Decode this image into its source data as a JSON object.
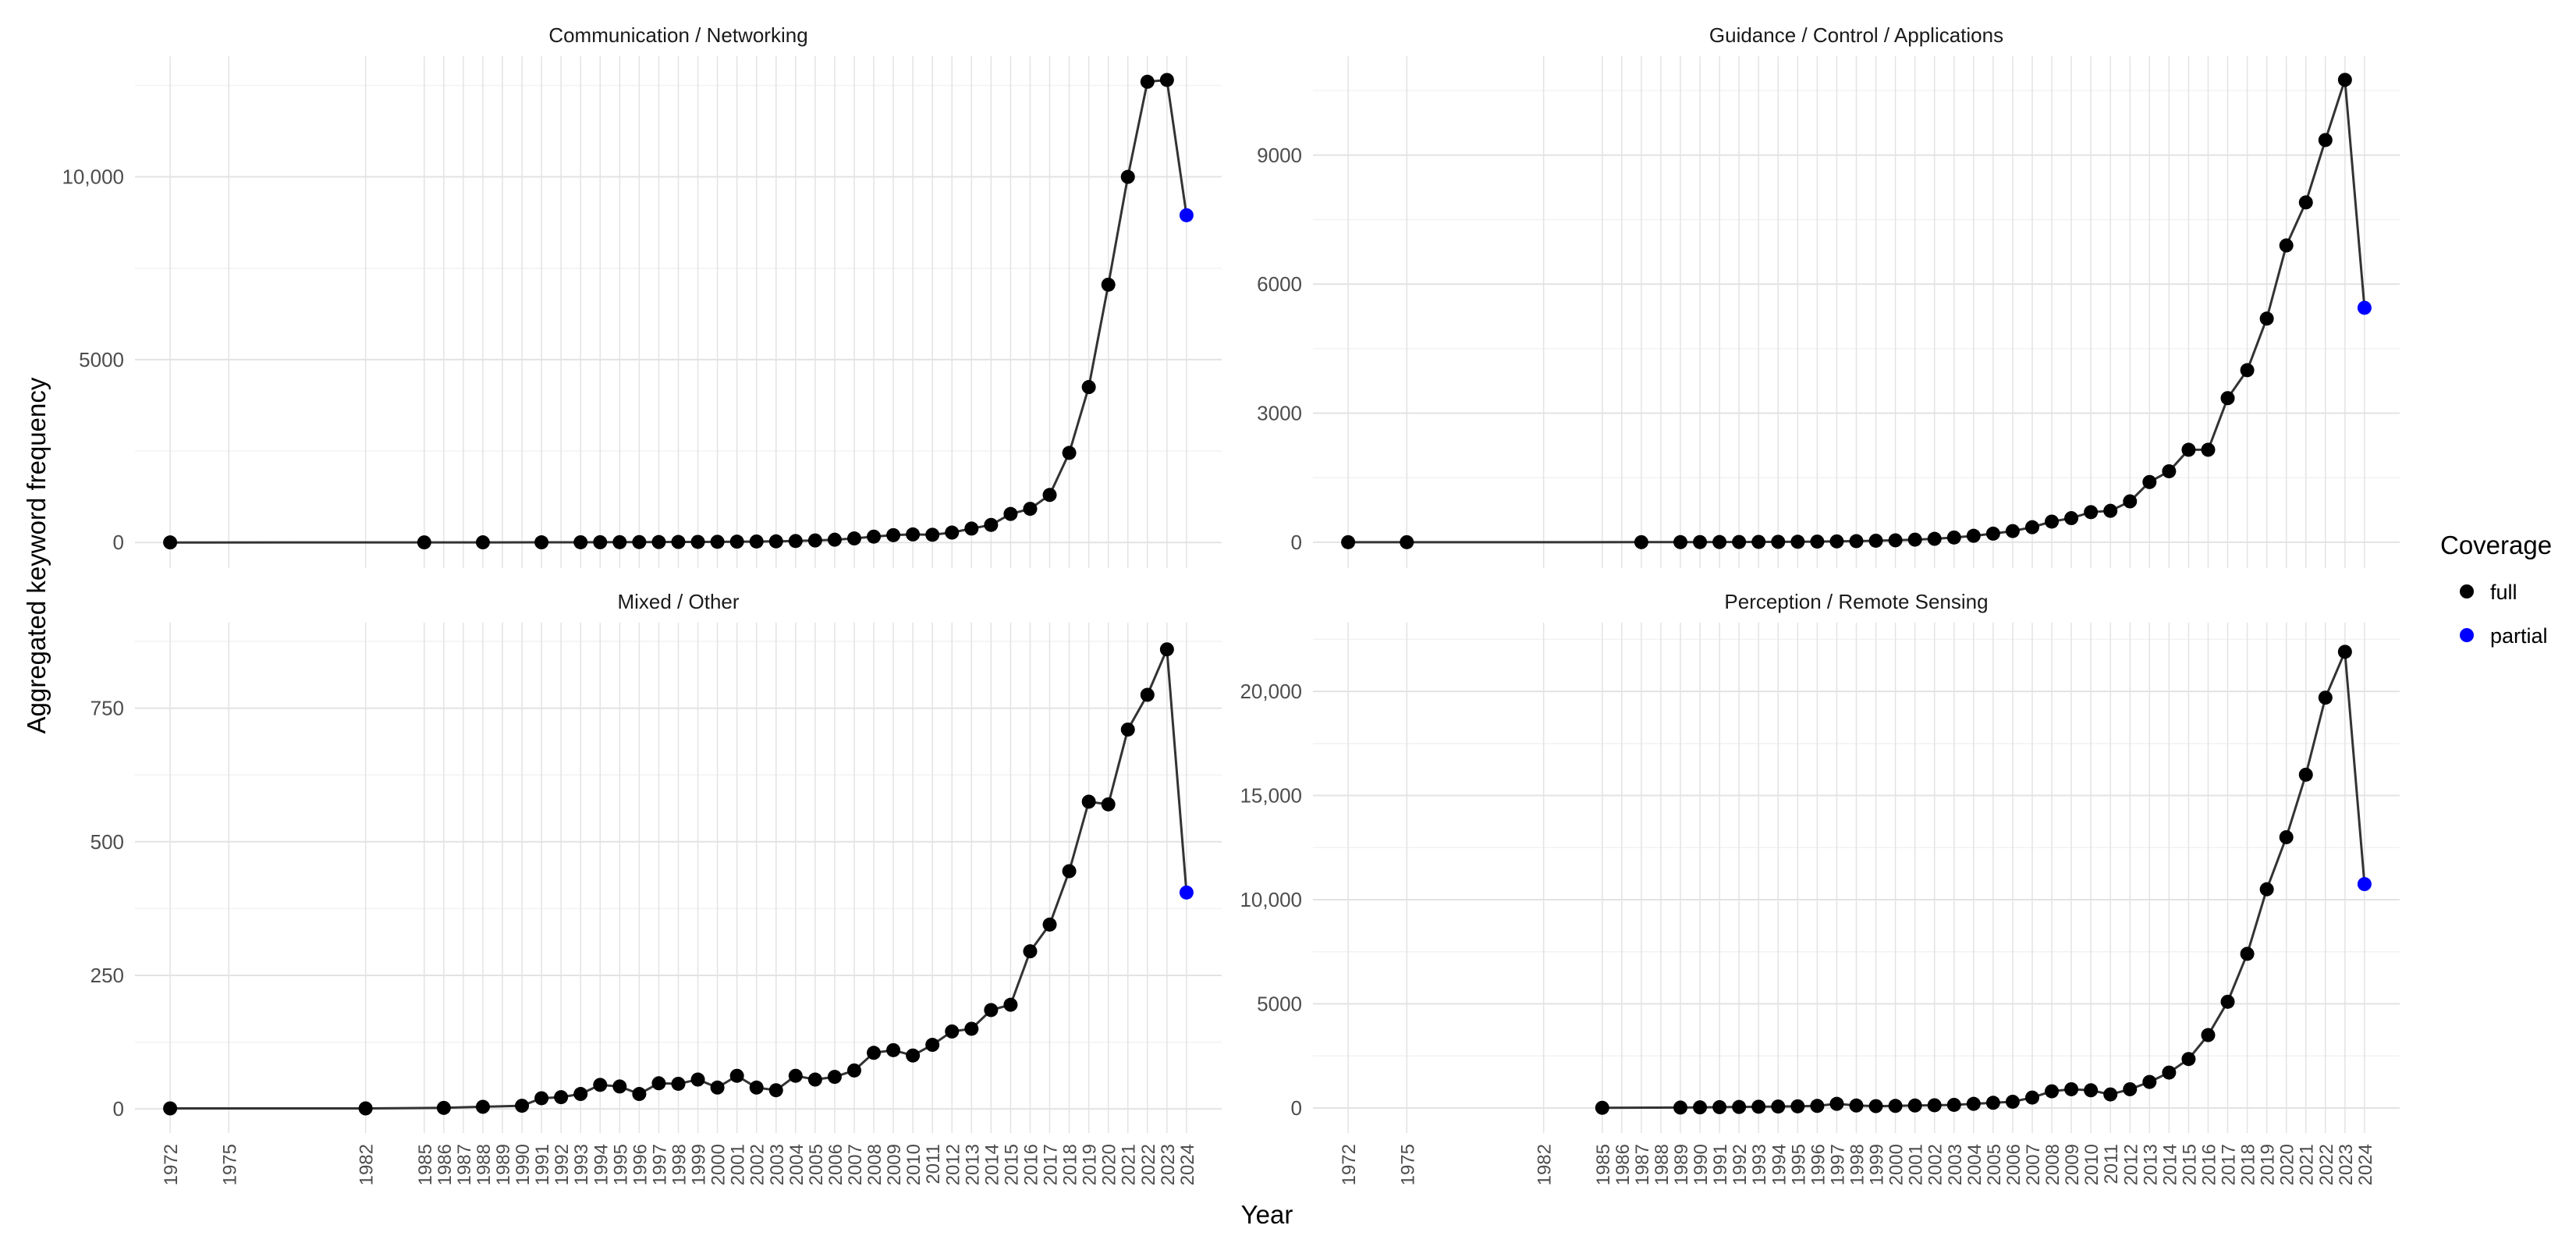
{
  "figure": {
    "xlabel": "Year",
    "ylabel": "Aggregated keyword frequency",
    "legend": {
      "title": "Coverage",
      "position": "right",
      "entries": [
        {
          "label": "full",
          "color": "#000000"
        },
        {
          "label": "partial",
          "color": "#0000ff"
        }
      ]
    },
    "colors": {
      "full": "#000000",
      "partial": "#0000ff",
      "line": "#333333",
      "grid_major": "#e3e3e3",
      "grid_minor": "#f2f2f2",
      "text": "#4d4d4d"
    }
  },
  "chart_data": [
    {
      "type": "line",
      "title": "Communication / Networking",
      "x": [
        1972,
        1985,
        1988,
        1991,
        1993,
        1994,
        1995,
        1996,
        1997,
        1998,
        1999,
        2000,
        2001,
        2002,
        2003,
        2004,
        2005,
        2006,
        2007,
        2008,
        2009,
        2010,
        2011,
        2012,
        2013,
        2014,
        2015,
        2016,
        2017,
        2018,
        2019,
        2020,
        2021,
        2022,
        2023,
        2024
      ],
      "y": [
        1,
        2,
        3,
        4,
        5,
        6,
        8,
        10,
        12,
        14,
        16,
        18,
        22,
        26,
        30,
        40,
        55,
        75,
        110,
        160,
        200,
        220,
        210,
        270,
        380,
        480,
        780,
        920,
        1300,
        2450,
        4250,
        7050,
        10000,
        12600,
        12650,
        8950
      ],
      "coverage": [
        "full",
        "full",
        "full",
        "full",
        "full",
        "full",
        "full",
        "full",
        "full",
        "full",
        "full",
        "full",
        "full",
        "full",
        "full",
        "full",
        "full",
        "full",
        "full",
        "full",
        "full",
        "full",
        "full",
        "full",
        "full",
        "full",
        "full",
        "full",
        "full",
        "full",
        "full",
        "full",
        "full",
        "full",
        "full",
        "partial"
      ],
      "x_ticks": [
        1972,
        1975,
        1982,
        1985,
        1986,
        1987,
        1988,
        1989,
        1990,
        1991,
        1992,
        1993,
        1994,
        1995,
        1996,
        1997,
        1998,
        1999,
        2000,
        2001,
        2002,
        2003,
        2004,
        2005,
        2006,
        2007,
        2008,
        2009,
        2010,
        2011,
        2012,
        2013,
        2014,
        2015,
        2016,
        2017,
        2018,
        2019,
        2020,
        2021,
        2022,
        2023,
        2024
      ],
      "y_ticks": [
        {
          "value": 0,
          "label": "0"
        },
        {
          "value": 5000,
          "label": "5000"
        },
        {
          "value": 10000,
          "label": "10,000"
        }
      ],
      "ylim": [
        -700,
        13300
      ],
      "xlim": [
        1970.2,
        2025.8
      ],
      "grid": true
    },
    {
      "type": "line",
      "title": "Guidance / Control / Applications",
      "x": [
        1972,
        1975,
        1987,
        1989,
        1990,
        1991,
        1992,
        1993,
        1994,
        1995,
        1996,
        1997,
        1998,
        1999,
        2000,
        2001,
        2002,
        2003,
        2004,
        2005,
        2006,
        2007,
        2008,
        2009,
        2010,
        2011,
        2012,
        2013,
        2014,
        2015,
        2016,
        2017,
        2018,
        2019,
        2020,
        2021,
        2022,
        2023,
        2024
      ],
      "y": [
        1,
        1,
        2,
        3,
        4,
        5,
        6,
        8,
        10,
        12,
        15,
        20,
        25,
        35,
        45,
        60,
        80,
        110,
        150,
        200,
        260,
        350,
        480,
        560,
        700,
        730,
        950,
        1400,
        1650,
        2150,
        2150,
        3350,
        4000,
        5200,
        6900,
        7900,
        9350,
        10750,
        5450
      ],
      "coverage": [
        "full",
        "full",
        "full",
        "full",
        "full",
        "full",
        "full",
        "full",
        "full",
        "full",
        "full",
        "full",
        "full",
        "full",
        "full",
        "full",
        "full",
        "full",
        "full",
        "full",
        "full",
        "full",
        "full",
        "full",
        "full",
        "full",
        "full",
        "full",
        "full",
        "full",
        "full",
        "full",
        "full",
        "full",
        "full",
        "full",
        "full",
        "full",
        "partial"
      ],
      "x_ticks": [
        1972,
        1975,
        1982,
        1985,
        1986,
        1987,
        1988,
        1989,
        1990,
        1991,
        1992,
        1993,
        1994,
        1995,
        1996,
        1997,
        1998,
        1999,
        2000,
        2001,
        2002,
        2003,
        2004,
        2005,
        2006,
        2007,
        2008,
        2009,
        2010,
        2011,
        2012,
        2013,
        2014,
        2015,
        2016,
        2017,
        2018,
        2019,
        2020,
        2021,
        2022,
        2023,
        2024
      ],
      "y_ticks": [
        {
          "value": 0,
          "label": "0"
        },
        {
          "value": 3000,
          "label": "3000"
        },
        {
          "value": 6000,
          "label": "6000"
        },
        {
          "value": 9000,
          "label": "9000"
        }
      ],
      "ylim": [
        -600,
        11300
      ],
      "xlim": [
        1970.2,
        2025.8
      ],
      "grid": true
    },
    {
      "type": "line",
      "title": "Mixed / Other",
      "x": [
        1972,
        1982,
        1986,
        1988,
        1990,
        1991,
        1992,
        1993,
        1994,
        1995,
        1996,
        1997,
        1998,
        1999,
        2000,
        2001,
        2002,
        2003,
        2004,
        2005,
        2006,
        2007,
        2008,
        2009,
        2010,
        2011,
        2012,
        2013,
        2014,
        2015,
        2016,
        2017,
        2018,
        2019,
        2020,
        2021,
        2022,
        2023,
        2024
      ],
      "y": [
        1,
        1,
        2,
        4,
        6,
        20,
        22,
        28,
        45,
        42,
        28,
        48,
        47,
        55,
        40,
        62,
        40,
        35,
        62,
        55,
        60,
        72,
        105,
        110,
        100,
        120,
        145,
        150,
        185,
        195,
        295,
        345,
        445,
        575,
        570,
        710,
        775,
        860,
        405
      ],
      "coverage": [
        "full",
        "full",
        "full",
        "full",
        "full",
        "full",
        "full",
        "full",
        "full",
        "full",
        "full",
        "full",
        "full",
        "full",
        "full",
        "full",
        "full",
        "full",
        "full",
        "full",
        "full",
        "full",
        "full",
        "full",
        "full",
        "full",
        "full",
        "full",
        "full",
        "full",
        "full",
        "full",
        "full",
        "full",
        "full",
        "full",
        "full",
        "full",
        "partial"
      ],
      "x_ticks": [
        1972,
        1975,
        1982,
        1985,
        1986,
        1987,
        1988,
        1989,
        1990,
        1991,
        1992,
        1993,
        1994,
        1995,
        1996,
        1997,
        1998,
        1999,
        2000,
        2001,
        2002,
        2003,
        2004,
        2005,
        2006,
        2007,
        2008,
        2009,
        2010,
        2011,
        2012,
        2013,
        2014,
        2015,
        2016,
        2017,
        2018,
        2019,
        2020,
        2021,
        2022,
        2023,
        2024
      ],
      "y_ticks": [
        {
          "value": 0,
          "label": "0"
        },
        {
          "value": 250,
          "label": "250"
        },
        {
          "value": 500,
          "label": "500"
        },
        {
          "value": 750,
          "label": "750"
        }
      ],
      "ylim": [
        -45,
        910
      ],
      "xlim": [
        1970.2,
        2025.8
      ],
      "grid": true
    },
    {
      "type": "line",
      "title": "Perception / Remote Sensing",
      "x": [
        1985,
        1989,
        1990,
        1991,
        1992,
        1993,
        1994,
        1995,
        1996,
        1997,
        1998,
        1999,
        2000,
        2001,
        2002,
        2003,
        2004,
        2005,
        2006,
        2007,
        2008,
        2009,
        2010,
        2011,
        2012,
        2013,
        2014,
        2015,
        2016,
        2017,
        2018,
        2019,
        2020,
        2021,
        2022,
        2023,
        2024
      ],
      "y": [
        10,
        20,
        30,
        40,
        50,
        60,
        70,
        80,
        100,
        200,
        120,
        90,
        100,
        120,
        130,
        150,
        200,
        250,
        300,
        500,
        800,
        900,
        850,
        650,
        900,
        1250,
        1700,
        2350,
        3500,
        5100,
        7400,
        10500,
        13000,
        16000,
        19700,
        21900,
        10750
      ],
      "coverage": [
        "full",
        "full",
        "full",
        "full",
        "full",
        "full",
        "full",
        "full",
        "full",
        "full",
        "full",
        "full",
        "full",
        "full",
        "full",
        "full",
        "full",
        "full",
        "full",
        "full",
        "full",
        "full",
        "full",
        "full",
        "full",
        "full",
        "full",
        "full",
        "full",
        "full",
        "full",
        "full",
        "full",
        "full",
        "full",
        "full",
        "partial"
      ],
      "x_ticks": [
        1972,
        1975,
        1982,
        1985,
        1986,
        1987,
        1988,
        1989,
        1990,
        1991,
        1992,
        1993,
        1994,
        1995,
        1996,
        1997,
        1998,
        1999,
        2000,
        2001,
        2002,
        2003,
        2004,
        2005,
        2006,
        2007,
        2008,
        2009,
        2010,
        2011,
        2012,
        2013,
        2014,
        2015,
        2016,
        2017,
        2018,
        2019,
        2020,
        2021,
        2022,
        2023,
        2024
      ],
      "y_ticks": [
        {
          "value": 0,
          "label": "0"
        },
        {
          "value": 5000,
          "label": "5000"
        },
        {
          "value": 10000,
          "label": "10,000"
        },
        {
          "value": 15000,
          "label": "15,000"
        },
        {
          "value": 20000,
          "label": "20,000"
        }
      ],
      "ylim": [
        -1200,
        23300
      ],
      "xlim": [
        1970.2,
        2025.8
      ],
      "grid": true
    }
  ]
}
